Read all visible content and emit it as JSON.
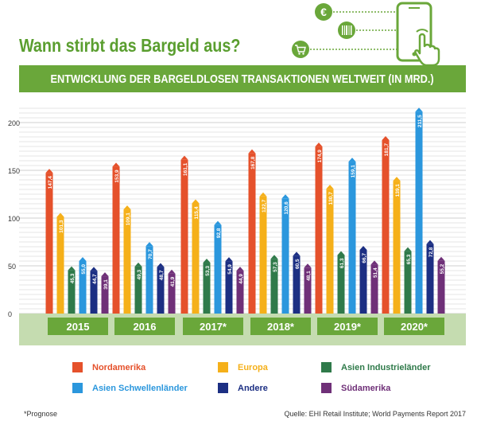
{
  "header": {
    "title": "Wann stirbt das Bargeld aus?",
    "banner": "ENTWICKLUNG DER BARGELDLOSEN TRANSAKTIONEN WELTWEIT (IN MRD.)"
  },
  "icons": {
    "euro_symbol": "€",
    "names": [
      "euro-coin-icon",
      "barcode-icon",
      "shopping-cart-icon",
      "smartphone-icon",
      "tapping-hand-icon"
    ]
  },
  "colors": {
    "brand_green": "#6aa73a",
    "band_green": "#c5dcb0",
    "year_box_green": "#6aa73a",
    "Nordamerika": "#e5512b",
    "Europa": "#f5b01a",
    "Asien Industrieländer": "#2f7a4a",
    "Asien Schwellenländer": "#2b97dd",
    "Andere": "#1c2f83",
    "Südamerika": "#6f3078"
  },
  "chart_data": {
    "type": "bar",
    "categories": [
      "2015",
      "2016",
      "2017*",
      "2018*",
      "2019*",
      "2020*"
    ],
    "series": [
      {
        "name": "Nordamerika",
        "values": [
          147.4,
          153.9,
          161.1,
          167.8,
          174.9,
          181.7
        ],
        "labels": [
          "147,4",
          "153,9",
          "161,1",
          "167,8",
          "174,9",
          "181,7"
        ]
      },
      {
        "name": "Europa",
        "values": [
          101.3,
          109.1,
          115.4,
          122.7,
          130.7,
          139.1
        ],
        "labels": [
          "101,3",
          "109,1",
          "115,4",
          "122,7",
          "130,7",
          "139,1"
        ]
      },
      {
        "name": "Asien Industrieländer",
        "values": [
          45.3,
          49.3,
          53.3,
          57.3,
          61.3,
          65.3
        ],
        "labels": [
          "45,3",
          "49,3",
          "53,3",
          "57,3",
          "61,3",
          "65,3"
        ]
      },
      {
        "name": "Asien Schwellenländer",
        "values": [
          55.0,
          70.7,
          92.8,
          120.6,
          159.1,
          211.5
        ],
        "labels": [
          "55,0",
          "70,7",
          "92,8",
          "120,6",
          "159,1",
          "211,5"
        ]
      },
      {
        "name": "Andere",
        "values": [
          44.7,
          48.7,
          54.9,
          60.5,
          66.7,
          72.8
        ],
        "labels": [
          "44,7",
          "48,7",
          "54,9",
          "60,5",
          "66,7",
          "72,8"
        ]
      },
      {
        "name": "Südamerika",
        "values": [
          39.1,
          41.9,
          44.9,
          48.1,
          51.4,
          55.2
        ],
        "labels": [
          "39,1",
          "41,9",
          "44,9",
          "48,1",
          "51,4",
          "55,2"
        ]
      }
    ],
    "ylim": [
      0,
      215
    ],
    "yticks": [
      0,
      50,
      100,
      150,
      200
    ],
    "ytick_labels": [
      "0",
      "50",
      "100",
      "150",
      "200"
    ],
    "grid": true,
    "legend_position": "bottom"
  },
  "footer": {
    "note": "*Prognose",
    "source": "Quelle: EHI Retail Institute; World Payments Report 2017"
  }
}
